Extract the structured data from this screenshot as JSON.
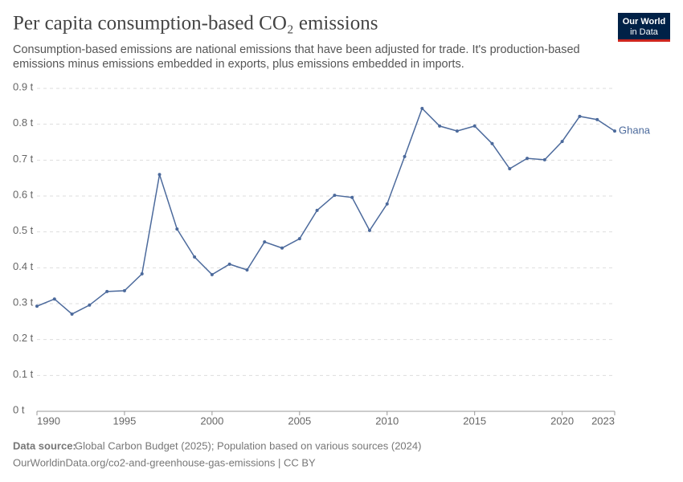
{
  "chart_data": {
    "type": "line",
    "title": "Per capita consumption-based CO₂ emissions",
    "subtitle_lines": [
      "Consumption-based emissions are national emissions that have been adjusted for trade. It's production-based",
      "emissions minus emissions embedded in exports, plus emissions embedded in imports."
    ],
    "logo_lines": [
      "Our World",
      "in Data"
    ],
    "source_label": "Data source:",
    "source_text": "Global Carbon Budget (2025); Population based on various sources (2024)",
    "url_text": "OurWorldinData.org/co2-and-greenhouse-gas-emissions | CC BY",
    "x": [
      1990,
      1991,
      1992,
      1993,
      1994,
      1995,
      1996,
      1997,
      1998,
      1999,
      2000,
      2001,
      2002,
      2003,
      2004,
      2005,
      2006,
      2007,
      2008,
      2009,
      2010,
      2011,
      2012,
      2013,
      2014,
      2015,
      2016,
      2017,
      2018,
      2019,
      2020,
      2021,
      2022,
      2023
    ],
    "series": [
      {
        "name": "Ghana",
        "color": "#4c6a9c",
        "values": [
          0.293,
          0.313,
          0.271,
          0.296,
          0.334,
          0.336,
          0.383,
          0.66,
          0.508,
          0.43,
          0.381,
          0.41,
          0.394,
          0.472,
          0.455,
          0.481,
          0.56,
          0.602,
          0.596,
          0.504,
          0.578,
          0.71,
          0.844,
          0.795,
          0.781,
          0.795,
          0.746,
          0.676,
          0.705,
          0.701,
          0.752,
          0.822,
          0.813,
          0.781
        ]
      }
    ],
    "xlim": [
      1990,
      2023
    ],
    "xticks": [
      1990,
      1995,
      2000,
      2005,
      2010,
      2015,
      2020,
      2023
    ],
    "ylim": [
      0,
      0.9
    ],
    "yticks": [
      {
        "value": 0,
        "label": "0 t"
      },
      {
        "value": 0.1,
        "label": "0.1 t"
      },
      {
        "value": 0.2,
        "label": "0.2 t"
      },
      {
        "value": 0.3,
        "label": "0.3 t"
      },
      {
        "value": 0.4,
        "label": "0.4 t"
      },
      {
        "value": 0.5,
        "label": "0.5 t"
      },
      {
        "value": 0.6,
        "label": "0.6 t"
      },
      {
        "value": 0.7,
        "label": "0.7 t"
      },
      {
        "value": 0.8,
        "label": "0.8 t"
      },
      {
        "value": 0.9,
        "label": "0.9 t"
      }
    ],
    "grid": true
  }
}
